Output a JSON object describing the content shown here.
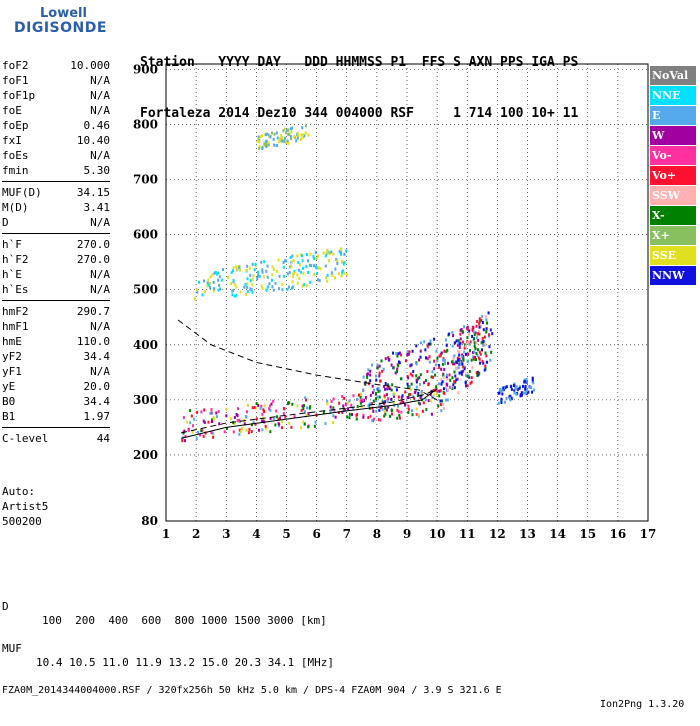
{
  "logo": {
    "line1": "Lowell",
    "line2": "DIGISONDE"
  },
  "header": {
    "row1": "Station   YYYY DAY   DDD HHMMSS P1  FFS S AXN PPS IGA PS",
    "row2": "Fortaleza 2014 Dez10 344 004000 RSF     1 714 100 10+ 11"
  },
  "params": {
    "group1": [
      {
        "label": "foF2",
        "value": "10.000"
      },
      {
        "label": "foF1",
        "value": "N/A"
      },
      {
        "label": "foF1p",
        "value": "N/A"
      },
      {
        "label": "foE",
        "value": "N/A"
      },
      {
        "label": "foEp",
        "value": "0.46"
      },
      {
        "label": "fxI",
        "value": "10.40"
      },
      {
        "label": "foEs",
        "value": "N/A"
      },
      {
        "label": "fmin",
        "value": "5.30"
      }
    ],
    "group2": [
      {
        "label": "MUF(D)",
        "value": "34.15"
      },
      {
        "label": "M(D)",
        "value": "3.41"
      },
      {
        "label": "D",
        "value": "N/A"
      }
    ],
    "group3": [
      {
        "label": "h`F",
        "value": "270.0"
      },
      {
        "label": "h`F2",
        "value": "270.0"
      },
      {
        "label": "h`E",
        "value": "N/A"
      },
      {
        "label": "h`Es",
        "value": "N/A"
      }
    ],
    "group4": [
      {
        "label": "hmF2",
        "value": "290.7"
      },
      {
        "label": "hmF1",
        "value": "N/A"
      },
      {
        "label": "hmE",
        "value": "110.0"
      },
      {
        "label": "yF2",
        "value": "34.4"
      },
      {
        "label": "yF1",
        "value": "N/A"
      },
      {
        "label": "yE",
        "value": "20.0"
      },
      {
        "label": "B0",
        "value": "34.4"
      },
      {
        "label": "B1",
        "value": "1.97"
      }
    ],
    "group5": [
      {
        "label": "C-level",
        "value": "44"
      }
    ]
  },
  "extra": {
    "line1": "Auto:",
    "line2": "Artist5",
    "line3": "500200"
  },
  "footer": {
    "d_label": "D",
    "d_values": "100  200  400  600  800 1000 1500 3000 [km]",
    "muf_label": "MUF",
    "muf_values": "10.4 10.5 11.0 11.9 13.2 15.0 20.3 34.1 [MHz]",
    "file_info": "FZA0M_2014344004000.RSF / 320fx256h 50 kHz 5.0 km / DPS-4 FZA0M 904 / 3.9 S 321.6 E",
    "version": "Ion2Png 1.3.20"
  },
  "legend": [
    {
      "label": "NoVal",
      "color": "#808080"
    },
    {
      "label": "NNE",
      "color": "#00e0ff"
    },
    {
      "label": "E",
      "color": "#55aaee"
    },
    {
      "label": "W",
      "color": "#a000a0"
    },
    {
      "label": "Vo-",
      "color": "#ff30a0"
    },
    {
      "label": "Vo+",
      "color": "#ff1030"
    },
    {
      "label": "SSW",
      "color": "#ffb0b0"
    },
    {
      "label": "X-",
      "color": "#008000"
    },
    {
      "label": "X+",
      "color": "#88c060"
    },
    {
      "label": "SSE",
      "color": "#e0e020"
    },
    {
      "label": "NNW",
      "color": "#1010e0"
    }
  ],
  "chart_data": {
    "type": "scatter",
    "x_ticks": [
      1,
      2,
      3,
      4,
      5,
      6,
      7,
      8,
      9,
      10,
      11,
      12,
      13,
      14,
      15,
      16,
      17
    ],
    "y_ticks": [
      80,
      200,
      300,
      400,
      500,
      600,
      700,
      800,
      900
    ],
    "xlim": [
      1,
      17
    ],
    "ylim": [
      80,
      910
    ],
    "grid": true,
    "legend_position": "right",
    "clusters": [
      {
        "mode": "O-trace F",
        "x": [
          1.5,
          10.0
        ],
        "y": [
          240,
          320
        ],
        "colors": [
          "#ff1030",
          "#ff30a0",
          "#a000a0",
          "#008000",
          "#e0e020",
          "#55aaee"
        ]
      },
      {
        "mode": "F spread",
        "x": [
          7.5,
          11.5
        ],
        "y": [
          290,
          430
        ],
        "colors": [
          "#a000a0",
          "#55aaee",
          "#ff1030",
          "#1010e0",
          "#008000"
        ]
      },
      {
        "mode": "X-trace",
        "x": [
          10.0,
          11.8
        ],
        "y": [
          300,
          450
        ],
        "colors": [
          "#1010e0",
          "#55aaee",
          "#008000",
          "#ff1030",
          "#ffb0b0"
        ]
      },
      {
        "mode": "spread high",
        "x": [
          12.0,
          13.2
        ],
        "y": [
          300,
          340
        ],
        "colors": [
          "#55aaee",
          "#1010e0"
        ]
      },
      {
        "mode": "2nd hop",
        "x": [
          1.9,
          7.0
        ],
        "y": [
          485,
          570
        ],
        "colors": [
          "#55aaee",
          "#e0e020",
          "#00e0ff"
        ]
      },
      {
        "mode": "3rd hop",
        "x": [
          4.0,
          5.7
        ],
        "y": [
          760,
          800
        ],
        "colors": [
          "#e0e020",
          "#88c060",
          "#55aaee"
        ]
      }
    ],
    "model_curves": {
      "solid": [
        [
          1.5,
          230
        ],
        [
          3,
          250
        ],
        [
          5,
          265
        ],
        [
          7,
          280
        ],
        [
          8.5,
          290
        ],
        [
          9.5,
          300
        ],
        [
          10.0,
          320
        ]
      ],
      "dashed_upper": [
        [
          1.4,
          445
        ],
        [
          2.5,
          400
        ],
        [
          4,
          368
        ],
        [
          6,
          345
        ],
        [
          8,
          328
        ],
        [
          9.4,
          318
        ],
        [
          10.0,
          300
        ]
      ],
      "dashed_lower": [
        [
          1.5,
          240
        ],
        [
          3,
          258
        ],
        [
          5,
          272
        ],
        [
          7,
          285
        ],
        [
          8.5,
          296
        ],
        [
          9.6,
          310
        ],
        [
          10.0,
          320
        ]
      ]
    }
  }
}
